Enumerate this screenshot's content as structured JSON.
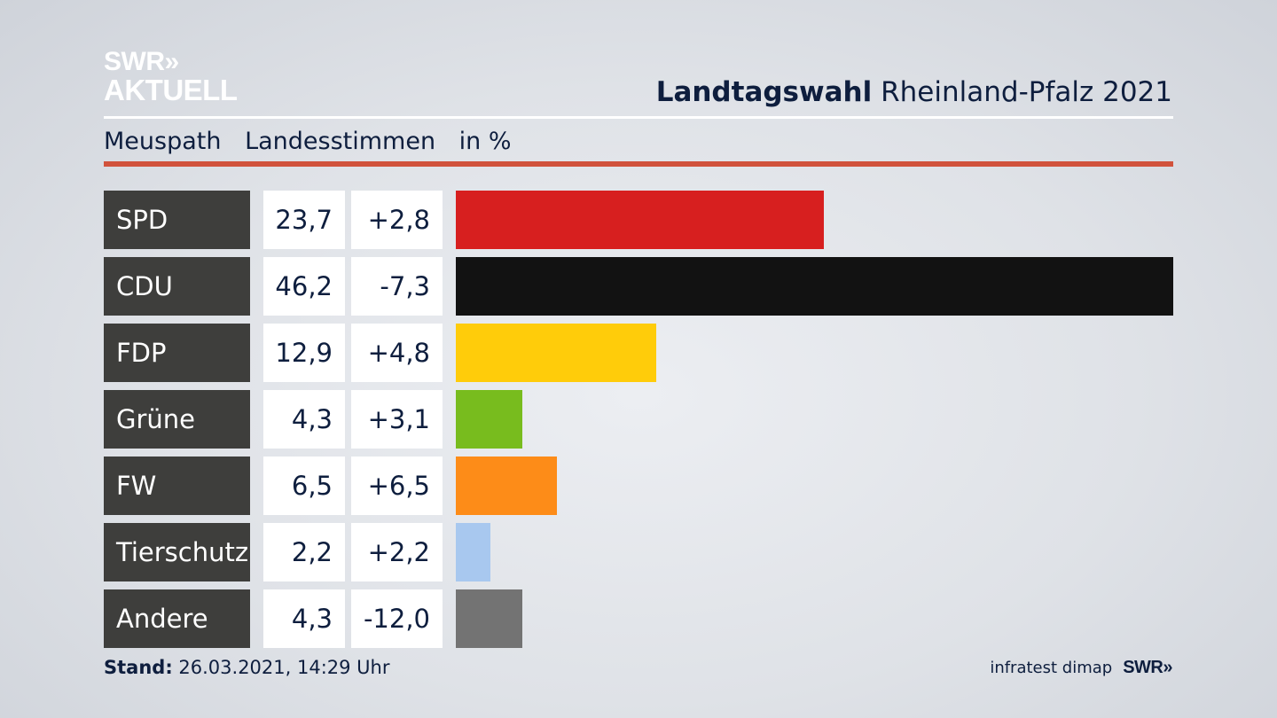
{
  "logo": {
    "line1": "SWR»",
    "line2": "AKTUELL"
  },
  "header": {
    "title_bold": "Landtagswahl",
    "title_rest": " Rheinland-Pfalz 2021"
  },
  "subtitle": {
    "place": "Meuspath",
    "vote_type": "Landesstimmen",
    "unit": "in %"
  },
  "colors": {
    "accent_rule": "#d1523c"
  },
  "chart_data": {
    "type": "bar",
    "orientation": "horizontal",
    "categories": [
      "SPD",
      "CDU",
      "FDP",
      "Grüne",
      "FW",
      "Tierschutz",
      "Andere"
    ],
    "values": [
      23.7,
      46.2,
      12.9,
      4.3,
      6.5,
      2.2,
      4.3
    ],
    "value_labels": [
      "23,7",
      "46,2",
      "12,9",
      "4,3",
      "6,5",
      "2,2",
      "4,3"
    ],
    "change_labels": [
      "+2,8",
      "-7,3",
      "+4,8",
      "+3,1",
      "+6,5",
      "+2,2",
      "-12,0"
    ],
    "changes": [
      2.8,
      -7.3,
      4.8,
      3.1,
      6.5,
      2.2,
      -12.0
    ],
    "colors": [
      "#d71f1f",
      "#121212",
      "#ffcc0a",
      "#78bc1e",
      "#fd8c18",
      "#a8c8ef",
      "#737373"
    ],
    "max_value": 46.2
  },
  "footer": {
    "stand_label": "Stand:",
    "stand_value": " 26.03.2021, 14:29 Uhr",
    "source": "infratest dimap",
    "brand": "SWR»"
  }
}
